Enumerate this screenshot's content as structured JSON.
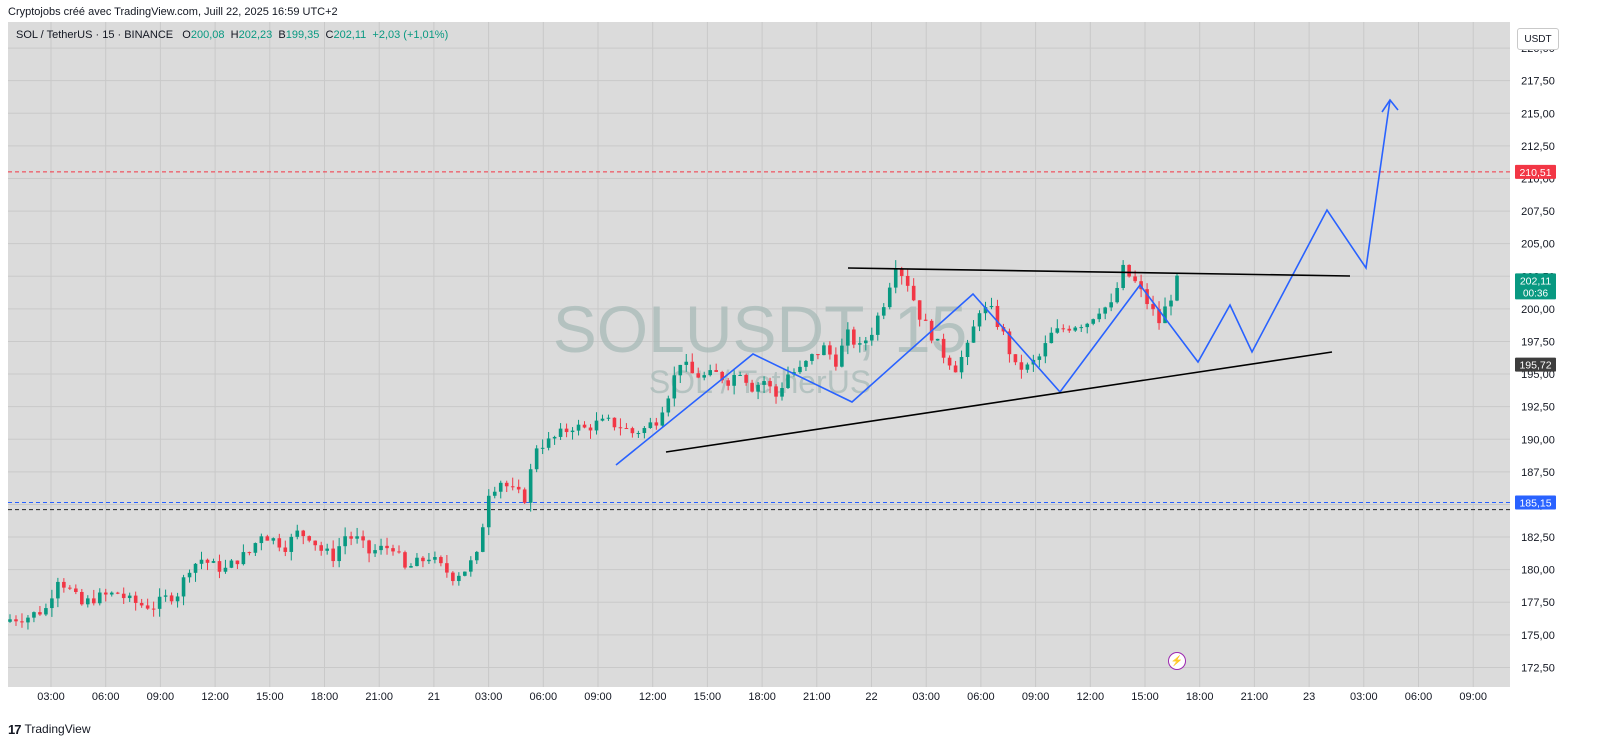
{
  "header": {
    "caption": "Cryptojobs créé avec TradingView.com, Juill 22, 2025 16:59 UTC+2"
  },
  "symbol_bar": {
    "symbol": "SOL / TetherUS · 15 · BINANCE",
    "o_label": "O",
    "o_value": "200,08",
    "h_label": "H",
    "h_value": "202,23",
    "b_label": "B",
    "b_value": "199,35",
    "c_label": "C",
    "c_value": "202,11",
    "change": "+2,03 (+1,01%)"
  },
  "currency_button": "USDT",
  "watermark": {
    "main": "SOLUSDT, 15",
    "sub": "SOL / TetherUS"
  },
  "footer": {
    "logo": "17",
    "brand": "TradingView"
  },
  "colors": {
    "up": "#089981",
    "down": "#f23645",
    "pattern": "#2962ff",
    "trendline": "#000000",
    "resistance": "#f23645",
    "support": "#2962ff",
    "plot_bg": "#dbdbdb"
  },
  "chart_data": {
    "type": "candlestick",
    "title": "",
    "y_range": [
      171.0,
      222.0
    ],
    "y_ticks": [
      "172,50",
      "175,00",
      "177,50",
      "180,00",
      "182,50",
      "185,00",
      "187,50",
      "190,00",
      "192,50",
      "195,00",
      "197,50",
      "200,00",
      "202,50",
      "205,00",
      "207,50",
      "210,00",
      "212,50",
      "215,00",
      "217,50",
      "220,00"
    ],
    "x_ticks": [
      "03:00",
      "06:00",
      "09:00",
      "12:00",
      "15:00",
      "18:00",
      "21:00",
      "21",
      "03:00",
      "06:00",
      "09:00",
      "12:00",
      "15:00",
      "18:00",
      "21:00",
      "22",
      "03:00",
      "06:00",
      "09:00",
      "12:00",
      "15:00",
      "18:00",
      "21:00",
      "23",
      "03:00",
      "06:00",
      "09:00"
    ],
    "price_labels": [
      {
        "value": 210.51,
        "text": "210,51",
        "color": "#f23645"
      },
      {
        "value": 202.11,
        "text": "202,11",
        "sub": "00:36",
        "color": "#089981"
      },
      {
        "value": 195.72,
        "text": "195,72",
        "color": "#3d3d3d"
      },
      {
        "value": 185.15,
        "text": "185,15",
        "color": "#2962ff"
      }
    ],
    "horizontal_lines": [
      {
        "value": 210.51,
        "style": "dashed",
        "color": "#f23645"
      },
      {
        "value": 185.15,
        "style": "dashed",
        "color": "#2962ff"
      },
      {
        "value": 184.6,
        "style": "dashed",
        "color": "#222222"
      }
    ],
    "close_path": [
      [
        0,
        176.2
      ],
      [
        3,
        176.4
      ],
      [
        6,
        177.0
      ],
      [
        8,
        179.4
      ],
      [
        10,
        178.4
      ],
      [
        12,
        177.3
      ],
      [
        14,
        177.8
      ],
      [
        16,
        178.0
      ],
      [
        18,
        178.2
      ],
      [
        20,
        177.6
      ],
      [
        22,
        177.3
      ],
      [
        24,
        177.2
      ],
      [
        26,
        177.8
      ],
      [
        28,
        178.2
      ],
      [
        30,
        180.2
      ],
      [
        32,
        180.8
      ],
      [
        34,
        180.3
      ],
      [
        36,
        180.0
      ],
      [
        38,
        180.8
      ],
      [
        40,
        181.3
      ],
      [
        42,
        182.8
      ],
      [
        44,
        182.3
      ],
      [
        46,
        181.8
      ],
      [
        48,
        182.8
      ],
      [
        50,
        182.6
      ],
      [
        52,
        181.5
      ],
      [
        54,
        181.0
      ],
      [
        56,
        182.6
      ],
      [
        58,
        182.3
      ],
      [
        60,
        181.3
      ],
      [
        62,
        181.6
      ],
      [
        64,
        181.8
      ],
      [
        66,
        180.0
      ],
      [
        68,
        180.5
      ],
      [
        70,
        181.0
      ],
      [
        72,
        180.2
      ],
      [
        74,
        179.5
      ],
      [
        76,
        180.0
      ],
      [
        78,
        181.0
      ],
      [
        80,
        186.0
      ],
      [
        82,
        186.8
      ],
      [
        84,
        186.0
      ],
      [
        86,
        185.5
      ],
      [
        88,
        189.5
      ],
      [
        90,
        189.8
      ],
      [
        92,
        190.4
      ],
      [
        94,
        191.0
      ],
      [
        96,
        190.8
      ],
      [
        98,
        191.2
      ],
      [
        100,
        191.3
      ],
      [
        102,
        191.0
      ],
      [
        104,
        190.5
      ],
      [
        106,
        190.8
      ],
      [
        108,
        191.5
      ],
      [
        110,
        193.5
      ],
      [
        112,
        196.0
      ],
      [
        114,
        195.0
      ],
      [
        116,
        194.8
      ],
      [
        118,
        195.0
      ],
      [
        120,
        194.5
      ],
      [
        122,
        195.3
      ],
      [
        124,
        194.0
      ],
      [
        126,
        194.5
      ],
      [
        128,
        193.3
      ],
      [
        130,
        195.0
      ],
      [
        132,
        195.3
      ],
      [
        134,
        196.3
      ],
      [
        136,
        197.0
      ],
      [
        138,
        196.0
      ],
      [
        140,
        198.0
      ],
      [
        142,
        197.0
      ],
      [
        144,
        198.3
      ],
      [
        146,
        200.5
      ],
      [
        148,
        203.5
      ],
      [
        150,
        202.0
      ],
      [
        152,
        199.5
      ],
      [
        154,
        198.0
      ],
      [
        156,
        196.5
      ],
      [
        158,
        195.5
      ],
      [
        160,
        197.0
      ],
      [
        162,
        200.0
      ],
      [
        164,
        199.8
      ],
      [
        166,
        198.0
      ],
      [
        168,
        195.5
      ],
      [
        170,
        195.5
      ],
      [
        172,
        196.3
      ],
      [
        174,
        198.0
      ],
      [
        176,
        198.5
      ],
      [
        178,
        198.8
      ],
      [
        180,
        199.0
      ],
      [
        182,
        200.0
      ],
      [
        184,
        200.2
      ],
      [
        186,
        203.0
      ],
      [
        188,
        202.0
      ],
      [
        190,
        200.5
      ],
      [
        192,
        199.0
      ],
      [
        194,
        201.0
      ],
      [
        195,
        202.11
      ]
    ],
    "candle_count": 196,
    "pattern_line": [
      [
        616,
        465
      ],
      [
        753,
        354
      ],
      [
        852,
        402
      ],
      [
        973,
        294
      ],
      [
        1060,
        392
      ],
      [
        1140,
        285
      ],
      [
        1198,
        362
      ],
      [
        1230,
        305
      ],
      [
        1252,
        352
      ],
      [
        1327,
        210
      ],
      [
        1366,
        268
      ],
      [
        1390,
        100
      ]
    ],
    "upper_trend": [
      [
        848,
        268
      ],
      [
        1350,
        276
      ]
    ],
    "lower_trend": [
      [
        666,
        452
      ],
      [
        1332,
        352
      ]
    ]
  }
}
